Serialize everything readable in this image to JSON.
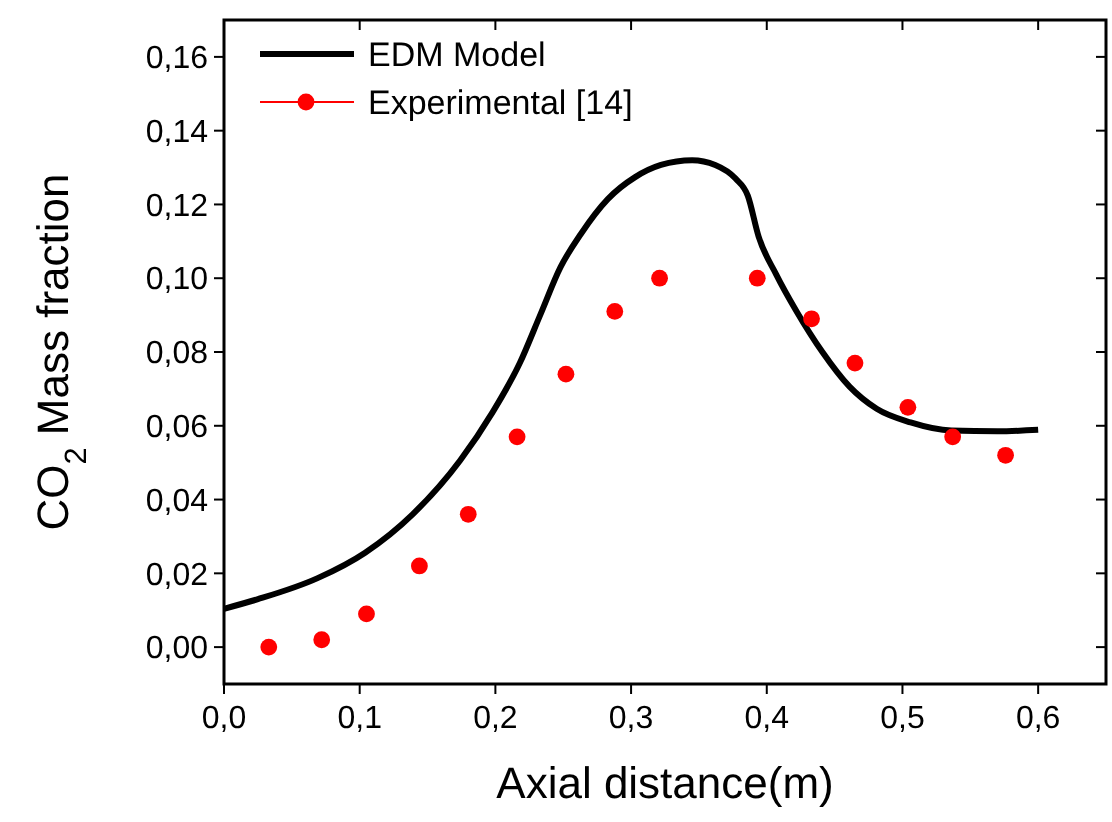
{
  "chart_data": {
    "type": "line",
    "xlabel": "Axial distance(m)",
    "ylabel": "CO$_{2}$ Mass fraction",
    "xlim": [
      0,
      0.65
    ],
    "ylim": [
      -0.01,
      0.17
    ],
    "xticks": [
      {
        "value": 0,
        "label": "0,0"
      },
      {
        "value": 0.1,
        "label": "0,1"
      },
      {
        "value": 0.2,
        "label": "0,2"
      },
      {
        "value": 0.3,
        "label": "0,3"
      },
      {
        "value": 0.4,
        "label": "0,4"
      },
      {
        "value": 0.5,
        "label": "0,5"
      },
      {
        "value": 0.6,
        "label": "0,6"
      }
    ],
    "yticks": [
      {
        "value": 0,
        "label": "0,00"
      },
      {
        "value": 0.02,
        "label": "0,02"
      },
      {
        "value": 0.04,
        "label": "0,04"
      },
      {
        "value": 0.06,
        "label": "0,06"
      },
      {
        "value": 0.08,
        "label": "0,08"
      },
      {
        "value": 0.1,
        "label": "0,10"
      },
      {
        "value": 0.12,
        "label": "0,12"
      },
      {
        "value": 0.14,
        "label": "0,14"
      },
      {
        "value": 0.16,
        "label": "0,16"
      }
    ],
    "legend": "top left",
    "grid": false,
    "series": [
      {
        "name": "EDM Model",
        "color": "#000000",
        "marker": "none",
        "line_style": "solid",
        "x": [
          0,
          0.025,
          0.069,
          0.104,
          0.139,
          0.174,
          0.198,
          0.218,
          0.233,
          0.248,
          0.263,
          0.283,
          0.303,
          0.322,
          0.345,
          0.362,
          0.377,
          0.386,
          0.394,
          0.407,
          0.422,
          0.441,
          0.461,
          0.481,
          0.506,
          0.536,
          0.57,
          0.6
        ],
        "values": [
          0.0104,
          0.013,
          0.0187,
          0.0256,
          0.036,
          0.0506,
          0.0637,
          0.077,
          0.09,
          0.103,
          0.112,
          0.1215,
          0.1274,
          0.1307,
          0.132,
          0.1307,
          0.127,
          0.1224,
          0.1113,
          0.101,
          0.091,
          0.08,
          0.0706,
          0.0646,
          0.0609,
          0.0587,
          0.0585,
          0.0589
        ]
      },
      {
        "name": "Experimental [14]",
        "type": "scatter",
        "color": "#ff0000",
        "marker": "circle",
        "x": [
          0.033,
          0.072,
          0.105,
          0.144,
          0.18,
          0.216,
          0.252,
          0.288,
          0.321,
          0.393,
          0.433,
          0.465,
          0.504,
          0.537,
          0.576
        ],
        "values": [
          0,
          0.002,
          0.009,
          0.022,
          0.036,
          0.057,
          0.074,
          0.091,
          0.1,
          0.1,
          0.089,
          0.077,
          0.065,
          0.057,
          0.052
        ]
      }
    ]
  }
}
